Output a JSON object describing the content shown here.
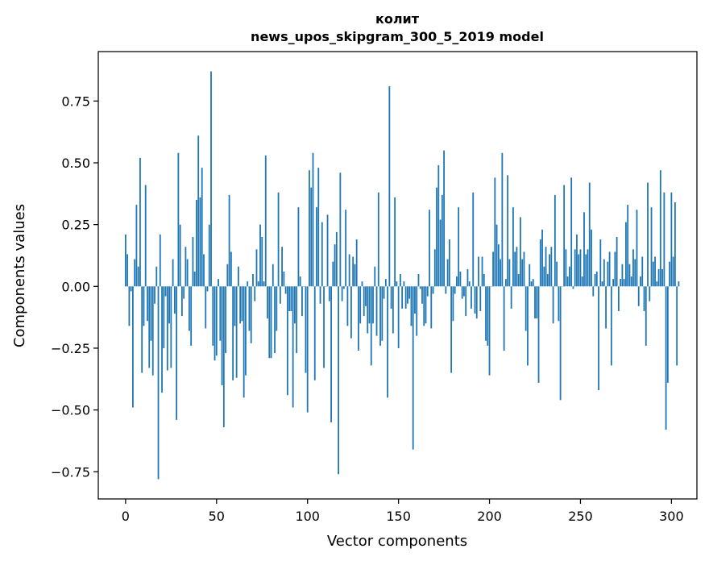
{
  "chart_data": {
    "type": "bar",
    "title": "колит",
    "subtitle": "news_upos_skipgram_300_5_2019 model",
    "xlabel": "Vector components",
    "ylabel": "Components values",
    "xlim": [
      -15,
      314
    ],
    "ylim": [
      -0.86,
      0.95
    ],
    "xticks": [
      0,
      50,
      100,
      150,
      200,
      250,
      300
    ],
    "yticks": [
      -0.75,
      -0.5,
      -0.25,
      0.0,
      0.25,
      0.5,
      0.75
    ],
    "ytick_labels": [
      "−0.75",
      "−0.50",
      "−0.25",
      "0.00",
      "0.25",
      "0.50",
      "0.75"
    ],
    "bar_color": "#1f77b4",
    "values": [
      0.21,
      0.13,
      -0.16,
      -0.02,
      -0.49,
      0.11,
      0.33,
      0.08,
      0.52,
      -0.35,
      -0.16,
      0.41,
      -0.14,
      -0.33,
      -0.22,
      -0.36,
      -0.07,
      0.08,
      -0.78,
      0.21,
      -0.43,
      -0.25,
      -0.04,
      -0.34,
      -0.15,
      -0.33,
      0.11,
      -0.11,
      -0.54,
      0.54,
      0.25,
      -0.12,
      -0.05,
      0.16,
      0.11,
      -0.18,
      -0.24,
      0.2,
      0.06,
      0.35,
      0.61,
      0.36,
      0.48,
      0.13,
      -0.17,
      -0.02,
      0.25,
      0.87,
      -0.24,
      -0.3,
      -0.28,
      0.03,
      -0.22,
      -0.4,
      -0.57,
      -0.27,
      0.09,
      0.37,
      0.14,
      -0.38,
      -0.16,
      -0.37,
      0.08,
      -0.15,
      -0.14,
      -0.45,
      -0.36,
      0.02,
      -0.18,
      -0.23,
      0.05,
      -0.06,
      0.15,
      0.02,
      0.25,
      0.2,
      0.02,
      0.53,
      -0.13,
      -0.29,
      -0.29,
      0.09,
      -0.27,
      -0.18,
      0.38,
      -0.07,
      0.16,
      0.06,
      -0.03,
      -0.44,
      -0.1,
      -0.1,
      -0.49,
      -0.15,
      -0.27,
      0.32,
      0.04,
      -0.12,
      0.0,
      -0.35,
      -0.51,
      0.47,
      0.4,
      0.54,
      -0.38,
      0.32,
      0.48,
      -0.07,
      0.26,
      -0.33,
      0.0,
      0.29,
      -0.06,
      -0.55,
      0.1,
      0.17,
      0.22,
      -0.76,
      0.46,
      -0.06,
      -0.01,
      0.31,
      -0.16,
      0.13,
      -0.21,
      0.12,
      0.09,
      0.19,
      -0.26,
      -0.15,
      0.02,
      -0.12,
      -0.08,
      -0.19,
      -0.15,
      -0.32,
      -0.15,
      0.08,
      -0.2,
      0.38,
      -0.24,
      -0.22,
      -0.05,
      0.03,
      -0.45,
      0.81,
      -0.09,
      -0.19,
      0.36,
      0.02,
      -0.25,
      0.05,
      -0.09,
      0.02,
      -0.09,
      -0.07,
      -0.05,
      -0.16,
      -0.66,
      -0.11,
      -0.2,
      0.05,
      -0.01,
      -0.07,
      -0.16,
      -0.15,
      -0.04,
      0.31,
      -0.17,
      -0.03,
      0.15,
      0.4,
      0.49,
      0.27,
      0.37,
      0.55,
      -0.03,
      0.11,
      0.19,
      -0.35,
      -0.14,
      -0.03,
      0.04,
      0.32,
      0.06,
      -0.05,
      -0.04,
      -0.12,
      0.07,
      0.02,
      -0.09,
      0.38,
      -0.11,
      -0.13,
      0.12,
      -0.1,
      0.12,
      0.05,
      -0.22,
      -0.24,
      -0.36,
      0.0,
      0.14,
      0.44,
      0.25,
      0.17,
      0.11,
      0.54,
      -0.26,
      0.03,
      0.45,
      0.11,
      -0.09,
      0.32,
      0.14,
      0.16,
      0.05,
      0.28,
      0.11,
      0.14,
      -0.18,
      -0.32,
      0.09,
      0.02,
      0.03,
      -0.13,
      -0.13,
      -0.39,
      0.19,
      0.23,
      0.08,
      0.16,
      0.05,
      0.13,
      0.16,
      -0.15,
      0.37,
      0.1,
      -0.14,
      -0.46,
      0.0,
      0.41,
      0.15,
      0.04,
      0.08,
      0.44,
      -0.01,
      0.15,
      0.21,
      0.13,
      0.15,
      0.04,
      0.3,
      0.13,
      0.15,
      0.42,
      0.23,
      -0.04,
      0.05,
      0.06,
      -0.42,
      0.19,
      0.02,
      0.11,
      -0.17,
      0.1,
      0.14,
      -0.32,
      0.03,
      0.14,
      0.2,
      -0.1,
      0.03,
      0.09,
      0.03,
      0.26,
      0.33,
      0.09,
      0.04,
      0.15,
      0.11,
      0.31,
      -0.08,
      0.04,
      0.12,
      -0.1,
      -0.24,
      0.42,
      -0.06,
      0.32,
      0.1,
      0.12,
      0.02,
      0.07,
      0.47,
      0.07,
      0.38,
      -0.58,
      -0.39,
      0.1,
      0.38,
      0.12,
      0.34,
      -0.32,
      0.02
    ]
  }
}
